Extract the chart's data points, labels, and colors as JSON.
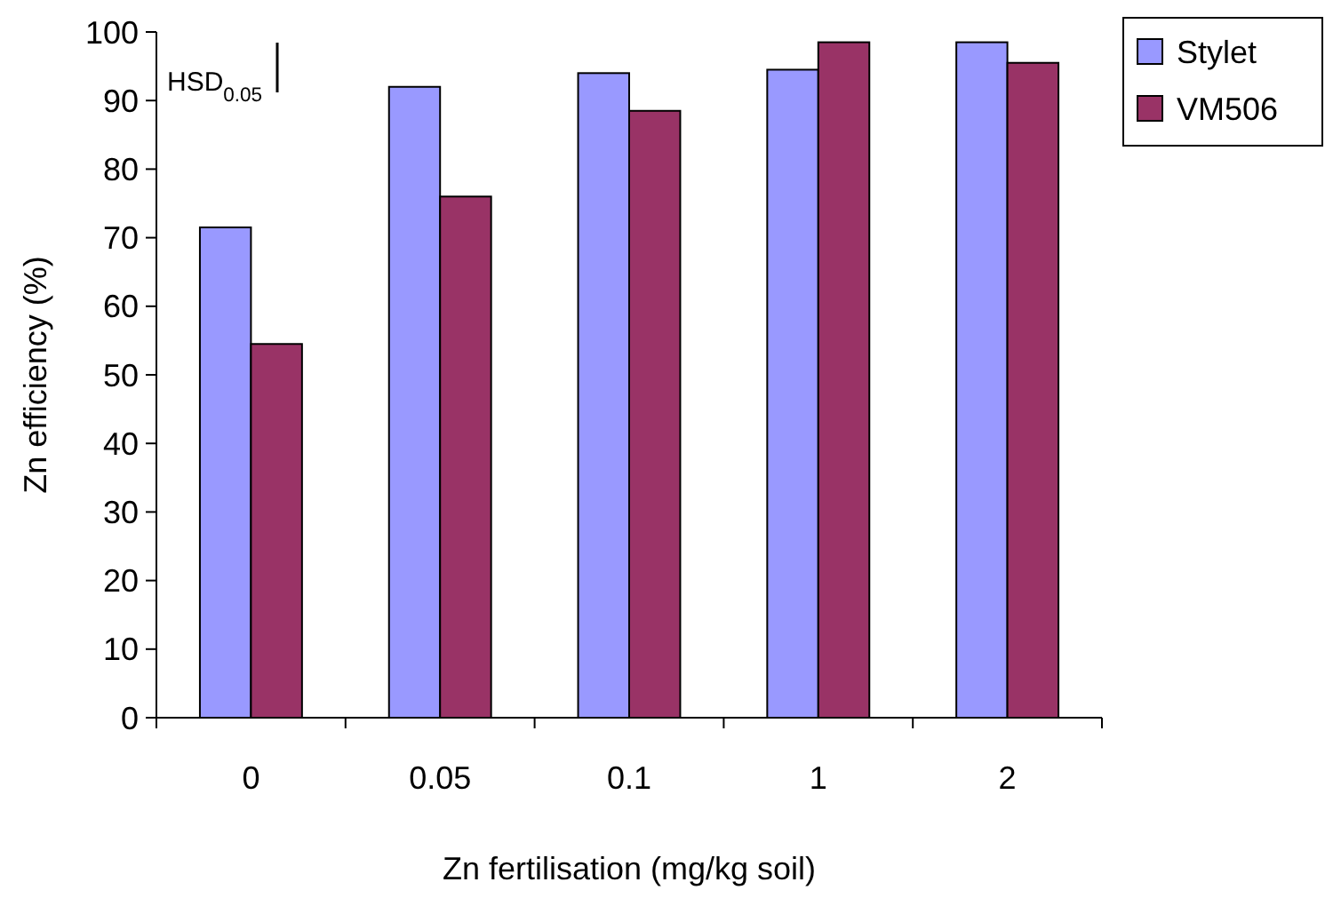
{
  "chart_data": {
    "type": "bar",
    "xlabel": "Zn fertilisation (mg/kg soil)",
    "ylabel": "Zn efficiency (%)",
    "categories": [
      "0",
      "0.05",
      "0.1",
      "1",
      "2"
    ],
    "series": [
      {
        "name": "Stylet",
        "color": "#9999ff",
        "values": [
          71.5,
          92,
          94,
          94.5,
          98.5
        ]
      },
      {
        "name": "VM506",
        "color": "#993366",
        "values": [
          54.5,
          76,
          88.5,
          98.5,
          95.5
        ]
      }
    ],
    "ylim": [
      0,
      100
    ],
    "yticks": [
      0,
      10,
      20,
      30,
      40,
      50,
      60,
      70,
      80,
      90,
      100
    ],
    "annotations": [
      "HSD$_{0.05}$"
    ],
    "legend": "top right",
    "grid": false
  }
}
